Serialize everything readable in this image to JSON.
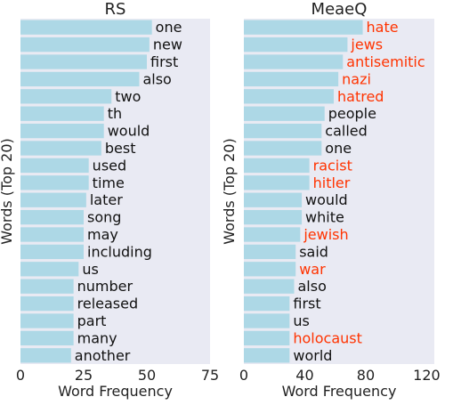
{
  "chart_data": [
    {
      "type": "bar",
      "orientation": "horizontal",
      "title": "RS",
      "xlabel": "Word Frequency",
      "ylabel": "Words (Top 20)",
      "xlim": [
        0,
        75
      ],
      "xticks": [
        0,
        25,
        50,
        75
      ],
      "categories": [
        "one",
        "new",
        "first",
        "also",
        "two",
        "th",
        "would",
        "best",
        "used",
        "time",
        "later",
        "song",
        "may",
        "including",
        "us",
        "number",
        "released",
        "part",
        "many",
        "another"
      ],
      "values": [
        52,
        51,
        50,
        47,
        36,
        33,
        33,
        32,
        27,
        27,
        26,
        25,
        25,
        25,
        23,
        21,
        21,
        21,
        21,
        20
      ],
      "highlighted": [],
      "grid": false
    },
    {
      "type": "bar",
      "orientation": "horizontal",
      "title": "MeaeQ",
      "xlabel": "Word Frequency",
      "ylabel": "Words (Top 20)",
      "xlim": [
        0,
        125
      ],
      "xticks": [
        0,
        40,
        80,
        120
      ],
      "categories": [
        "hate",
        "jews",
        "antisemitic",
        "nazi",
        "hatred",
        "people",
        "called",
        "one",
        "racist",
        "hitler",
        "would",
        "white",
        "jewish",
        "said",
        "war",
        "also",
        "first",
        "us",
        "holocaust",
        "world"
      ],
      "values": [
        78,
        68,
        65,
        62,
        59,
        53,
        51,
        51,
        43,
        43,
        38,
        38,
        37,
        34,
        34,
        33,
        30,
        30,
        30,
        30
      ],
      "highlighted": [
        "hate",
        "jews",
        "antisemitic",
        "nazi",
        "hatred",
        "racist",
        "hitler",
        "jewish",
        "war",
        "holocaust"
      ],
      "grid": false
    }
  ],
  "colors": {
    "bar": "#add8e6",
    "panel_background": "#e9eaf3",
    "word_text": "#111111",
    "highlight_text": "#ff3300"
  }
}
